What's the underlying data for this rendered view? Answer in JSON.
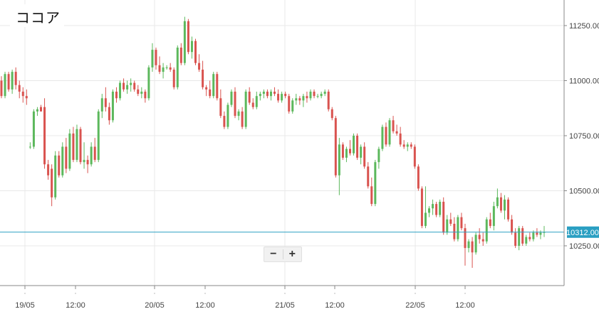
{
  "title": "ココア",
  "zoom": {
    "minus_label": "−",
    "plus_label": "+"
  },
  "colors": {
    "up": "#5cb85c",
    "down": "#d9534f",
    "current_line": "#2a9fc2",
    "grid": "#e8e8e8",
    "axis": "#888888"
  },
  "chart_data": {
    "type": "candlestick",
    "title": "ココア",
    "y_ticks": [
      11250,
      11000,
      10750,
      10500,
      10250
    ],
    "y_tick_labels": [
      "11250.00",
      "11000.00",
      "10750.00",
      "10500.00",
      "10250.00"
    ],
    "ylim": [
      10100,
      11340
    ],
    "x_tick_labels": [
      "19/05",
      "12:00",
      "20/05",
      "12:00",
      "21/05",
      "12:00",
      "22/05",
      "12:00"
    ],
    "current_price": 10312,
    "current_price_label": "10312.00",
    "grid": true,
    "ohlc": [
      [
        11000,
        11020,
        10920,
        10930
      ],
      [
        10930,
        11040,
        10920,
        11030
      ],
      [
        11030,
        11040,
        10950,
        10960
      ],
      [
        10960,
        11050,
        10940,
        11040
      ],
      [
        11040,
        11060,
        10960,
        10980
      ],
      [
        10980,
        11000,
        10920,
        10950
      ],
      [
        10950,
        10970,
        10900,
        10930
      ],
      [
        10930,
        10960,
        10890,
        10920
      ],
      [
        10700,
        10720,
        10690,
        10700
      ],
      [
        10700,
        10870,
        10690,
        10860
      ],
      [
        10860,
        10880,
        10840,
        10870
      ],
      [
        10880,
        10890,
        10860,
        10860
      ],
      [
        10880,
        10920,
        10600,
        10620
      ],
      [
        10620,
        10640,
        10550,
        10570
      ],
      [
        10600,
        10620,
        10430,
        10470
      ],
      [
        10470,
        10680,
        10460,
        10660
      ],
      [
        10660,
        10680,
        10560,
        10570
      ],
      [
        10570,
        10720,
        10560,
        10700
      ],
      [
        10700,
        10740,
        10580,
        10600
      ],
      [
        10600,
        10780,
        10590,
        10760
      ],
      [
        10760,
        10790,
        10630,
        10640
      ],
      [
        10640,
        10800,
        10630,
        10780
      ],
      [
        10780,
        10790,
        10620,
        10630
      ],
      [
        10630,
        10720,
        10600,
        10640
      ],
      [
        10640,
        10660,
        10580,
        10620
      ],
      [
        10620,
        10720,
        10610,
        10700
      ],
      [
        10700,
        10740,
        10630,
        10640
      ],
      [
        10640,
        10870,
        10630,
        10860
      ],
      [
        10860,
        10940,
        10830,
        10920
      ],
      [
        10920,
        10970,
        10860,
        10880
      ],
      [
        10880,
        10900,
        10800,
        10820
      ],
      [
        10820,
        10960,
        10810,
        10950
      ],
      [
        10950,
        10970,
        10900,
        10920
      ],
      [
        10920,
        11000,
        10910,
        10990
      ],
      [
        10990,
        11010,
        10950,
        10960
      ],
      [
        10960,
        11000,
        10940,
        10980
      ],
      [
        10980,
        11010,
        10950,
        10990
      ],
      [
        10990,
        11000,
        10950,
        10960
      ],
      [
        10960,
        10980,
        10930,
        10940
      ],
      [
        10940,
        10970,
        10920,
        10950
      ],
      [
        10950,
        10960,
        10900,
        10920
      ],
      [
        10920,
        11070,
        10910,
        11060
      ],
      [
        11060,
        11170,
        11040,
        11140
      ],
      [
        11140,
        11150,
        11050,
        11070
      ],
      [
        11070,
        11110,
        11030,
        11040
      ],
      [
        11040,
        11080,
        11010,
        11060
      ],
      [
        11060,
        11070,
        11050,
        11060
      ],
      [
        11060,
        11080,
        11040,
        11050
      ],
      [
        11050,
        11060,
        10960,
        10970
      ],
      [
        10970,
        11160,
        10960,
        11150
      ],
      [
        11150,
        11170,
        11070,
        11080
      ],
      [
        11080,
        11290,
        11070,
        11270
      ],
      [
        11270,
        11280,
        11120,
        11130
      ],
      [
        11130,
        11200,
        11100,
        11180
      ],
      [
        11180,
        11190,
        11070,
        11080
      ],
      [
        11080,
        11120,
        11040,
        11050
      ],
      [
        11050,
        11090,
        10960,
        10970
      ],
      [
        10970,
        10980,
        10930,
        10960
      ],
      [
        10960,
        11000,
        10920,
        10930
      ],
      [
        10930,
        11040,
        10920,
        11030
      ],
      [
        11030,
        11040,
        10910,
        10920
      ],
      [
        10920,
        10960,
        10830,
        10840
      ],
      [
        10840,
        10860,
        10780,
        10790
      ],
      [
        10790,
        10900,
        10780,
        10890
      ],
      [
        10890,
        10960,
        10880,
        10950
      ],
      [
        10950,
        10970,
        10830,
        10840
      ],
      [
        10840,
        10870,
        10820,
        10860
      ],
      [
        10860,
        10880,
        10780,
        10790
      ],
      [
        10790,
        10960,
        10780,
        10950
      ],
      [
        10950,
        10970,
        10890,
        10900
      ],
      [
        10900,
        10920,
        10870,
        10880
      ],
      [
        10880,
        10950,
        10870,
        10930
      ],
      [
        10930,
        10950,
        10910,
        10940
      ],
      [
        10940,
        10960,
        10920,
        10950
      ],
      [
        10950,
        10960,
        10920,
        10930
      ],
      [
        10930,
        10960,
        10910,
        10950
      ],
      [
        10950,
        10970,
        10930,
        10940
      ],
      [
        10940,
        10960,
        10900,
        10910
      ],
      [
        10910,
        10950,
        10900,
        10940
      ],
      [
        10940,
        10950,
        10920,
        10930
      ],
      [
        10930,
        10940,
        10850,
        10860
      ],
      [
        10860,
        10920,
        10850,
        10910
      ],
      [
        10910,
        10940,
        10890,
        10920
      ],
      [
        10920,
        10930,
        10890,
        10910
      ],
      [
        10910,
        10940,
        10880,
        10930
      ],
      [
        10930,
        10950,
        10900,
        10920
      ],
      [
        10920,
        10960,
        10910,
        10950
      ],
      [
        10950,
        10960,
        10920,
        10930
      ],
      [
        10930,
        10940,
        10920,
        10930
      ],
      [
        10930,
        10950,
        10920,
        10940
      ],
      [
        10940,
        10960,
        10930,
        10950
      ],
      [
        10950,
        10960,
        10860,
        10870
      ],
      [
        10870,
        10880,
        10820,
        10830
      ],
      [
        10830,
        10840,
        10560,
        10570
      ],
      [
        10570,
        10740,
        10480,
        10710
      ],
      [
        10710,
        10720,
        10640,
        10650
      ],
      [
        10650,
        10700,
        10630,
        10690
      ],
      [
        10690,
        10730,
        10660,
        10670
      ],
      [
        10670,
        10760,
        10660,
        10750
      ],
      [
        10750,
        10760,
        10640,
        10650
      ],
      [
        10650,
        10710,
        10620,
        10700
      ],
      [
        10700,
        10720,
        10600,
        10610
      ],
      [
        10610,
        10630,
        10510,
        10520
      ],
      [
        10520,
        10560,
        10430,
        10440
      ],
      [
        10440,
        10640,
        10430,
        10630
      ],
      [
        10630,
        10700,
        10600,
        10690
      ],
      [
        10690,
        10800,
        10680,
        10790
      ],
      [
        10790,
        10810,
        10700,
        10710
      ],
      [
        10710,
        10830,
        10700,
        10820
      ],
      [
        10820,
        10840,
        10760,
        10770
      ],
      [
        10770,
        10800,
        10750,
        10760
      ],
      [
        10760,
        10790,
        10700,
        10710
      ],
      [
        10710,
        10730,
        10690,
        10700
      ],
      [
        10700,
        10720,
        10680,
        10710
      ],
      [
        10710,
        10720,
        10690,
        10700
      ],
      [
        10700,
        10710,
        10600,
        10610
      ],
      [
        10610,
        10620,
        10500,
        10510
      ],
      [
        10510,
        10520,
        10330,
        10340
      ],
      [
        10340,
        10520,
        10330,
        10400
      ],
      [
        10400,
        10430,
        10380,
        10420
      ],
      [
        10420,
        10460,
        10390,
        10440
      ],
      [
        10440,
        10450,
        10380,
        10390
      ],
      [
        10390,
        10460,
        10380,
        10450
      ],
      [
        10450,
        10470,
        10300,
        10310
      ],
      [
        10310,
        10390,
        10300,
        10370
      ],
      [
        10370,
        10400,
        10340,
        10350
      ],
      [
        10350,
        10380,
        10270,
        10280
      ],
      [
        10280,
        10390,
        10270,
        10380
      ],
      [
        10380,
        10400,
        10320,
        10330
      ],
      [
        10330,
        10350,
        10160,
        10240
      ],
      [
        10240,
        10280,
        10220,
        10270
      ],
      [
        10270,
        10290,
        10150,
        10220
      ],
      [
        10220,
        10310,
        10210,
        10300
      ],
      [
        10300,
        10330,
        10260,
        10280
      ],
      [
        10280,
        10310,
        10250,
        10270
      ],
      [
        10270,
        10380,
        10260,
        10370
      ],
      [
        10370,
        10400,
        10330,
        10340
      ],
      [
        10340,
        10450,
        10320,
        10430
      ],
      [
        10430,
        10510,
        10420,
        10470
      ],
      [
        10470,
        10490,
        10400,
        10410
      ],
      [
        10410,
        10480,
        10370,
        10460
      ],
      [
        10460,
        10470,
        10360,
        10370
      ],
      [
        10370,
        10390,
        10300,
        10310
      ],
      [
        10310,
        10330,
        10240,
        10250
      ],
      [
        10250,
        10340,
        10230,
        10330
      ],
      [
        10330,
        10340,
        10250,
        10260
      ],
      [
        10260,
        10300,
        10250,
        10290
      ],
      [
        10290,
        10310,
        10270,
        10280
      ],
      [
        10280,
        10320,
        10270,
        10310
      ],
      [
        10310,
        10330,
        10290,
        10300
      ],
      [
        10300,
        10320,
        10280,
        10310
      ],
      [
        10310,
        10340,
        10290,
        10312
      ]
    ]
  }
}
